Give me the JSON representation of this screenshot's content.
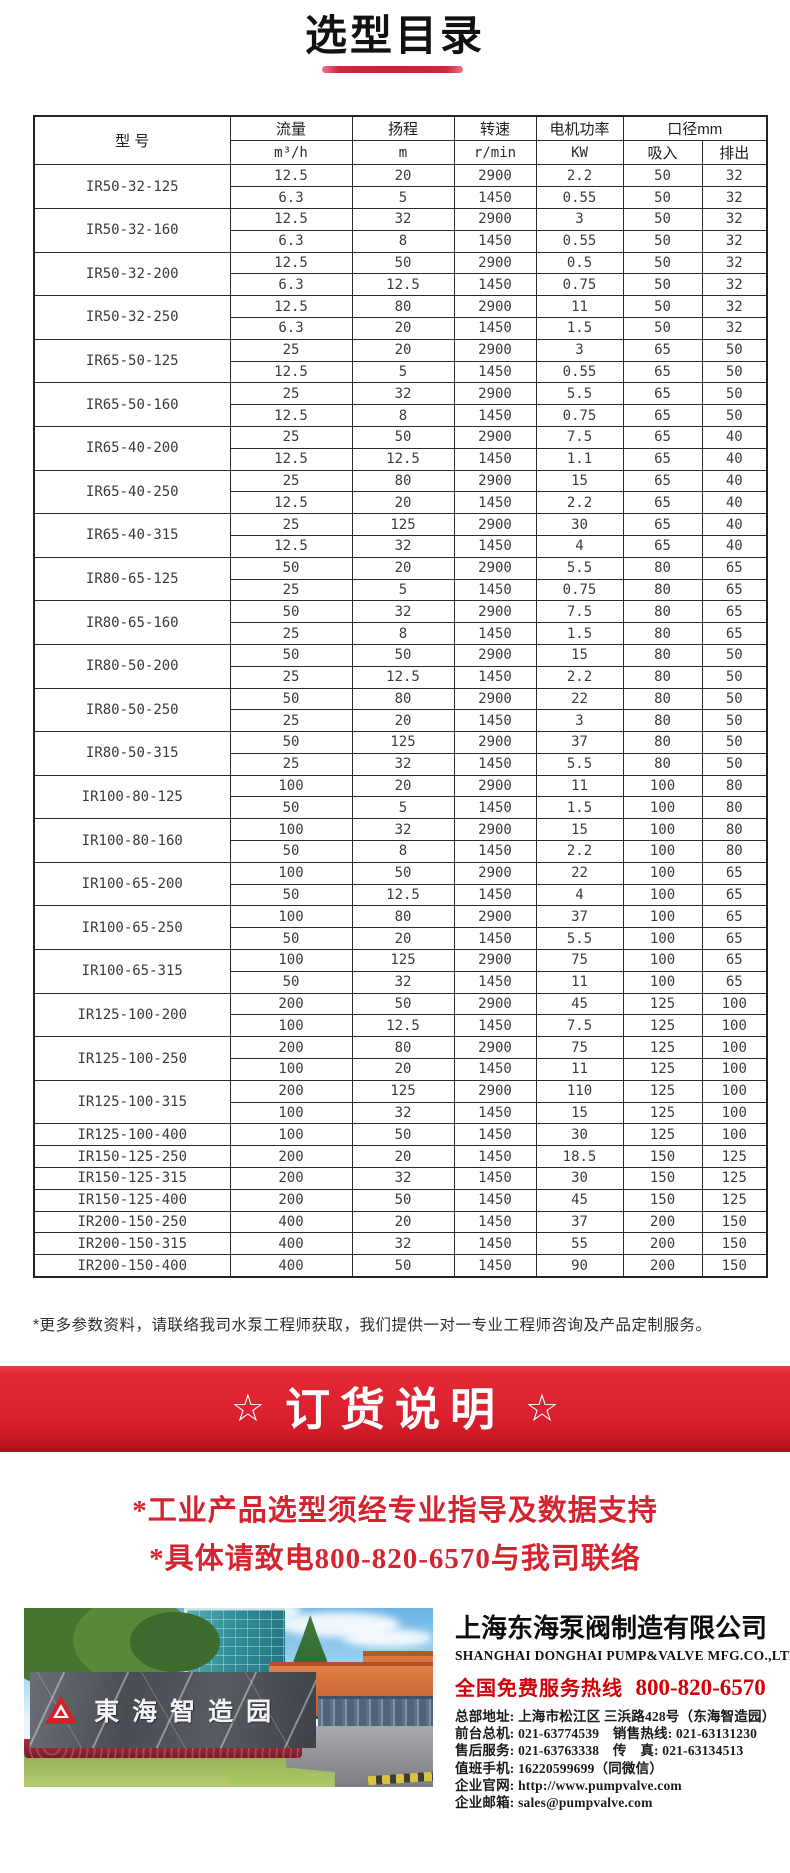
{
  "header": {
    "title": "选型目录"
  },
  "table": {
    "headers": {
      "model": "型 号",
      "flow": "流量",
      "flow_unit": "m³/h",
      "head": "扬程",
      "head_unit": "m",
      "speed": "转速",
      "speed_unit": "r/min",
      "power": "电机功率",
      "power_unit": "KW",
      "diameter": "口径mm",
      "suction": "吸入",
      "discharge": "排出"
    },
    "groups": [
      {
        "model": "IR50-32-125",
        "rows": [
          [
            "12.5",
            "20",
            "2900",
            "2.2",
            "50",
            "32"
          ],
          [
            "6.3",
            "5",
            "1450",
            "0.55",
            "50",
            "32"
          ]
        ]
      },
      {
        "model": "IR50-32-160",
        "rows": [
          [
            "12.5",
            "32",
            "2900",
            "3",
            "50",
            "32"
          ],
          [
            "6.3",
            "8",
            "1450",
            "0.55",
            "50",
            "32"
          ]
        ]
      },
      {
        "model": "IR50-32-200",
        "rows": [
          [
            "12.5",
            "50",
            "2900",
            "0.5",
            "50",
            "32"
          ],
          [
            "6.3",
            "12.5",
            "1450",
            "0.75",
            "50",
            "32"
          ]
        ]
      },
      {
        "model": "IR50-32-250",
        "rows": [
          [
            "12.5",
            "80",
            "2900",
            "11",
            "50",
            "32"
          ],
          [
            "6.3",
            "20",
            "1450",
            "1.5",
            "50",
            "32"
          ]
        ]
      },
      {
        "model": "IR65-50-125",
        "rows": [
          [
            "25",
            "20",
            "2900",
            "3",
            "65",
            "50"
          ],
          [
            "12.5",
            "5",
            "1450",
            "0.55",
            "65",
            "50"
          ]
        ]
      },
      {
        "model": "IR65-50-160",
        "rows": [
          [
            "25",
            "32",
            "2900",
            "5.5",
            "65",
            "50"
          ],
          [
            "12.5",
            "8",
            "1450",
            "0.75",
            "65",
            "50"
          ]
        ]
      },
      {
        "model": "IR65-40-200",
        "rows": [
          [
            "25",
            "50",
            "2900",
            "7.5",
            "65",
            "40"
          ],
          [
            "12.5",
            "12.5",
            "1450",
            "1.1",
            "65",
            "40"
          ]
        ]
      },
      {
        "model": "IR65-40-250",
        "rows": [
          [
            "25",
            "80",
            "2900",
            "15",
            "65",
            "40"
          ],
          [
            "12.5",
            "20",
            "1450",
            "2.2",
            "65",
            "40"
          ]
        ]
      },
      {
        "model": "IR65-40-315",
        "rows": [
          [
            "25",
            "125",
            "2900",
            "30",
            "65",
            "40"
          ],
          [
            "12.5",
            "32",
            "1450",
            "4",
            "65",
            "40"
          ]
        ]
      },
      {
        "model": "IR80-65-125",
        "rows": [
          [
            "50",
            "20",
            "2900",
            "5.5",
            "80",
            "65"
          ],
          [
            "25",
            "5",
            "1450",
            "0.75",
            "80",
            "65"
          ]
        ]
      },
      {
        "model": "IR80-65-160",
        "rows": [
          [
            "50",
            "32",
            "2900",
            "7.5",
            "80",
            "65"
          ],
          [
            "25",
            "8",
            "1450",
            "1.5",
            "80",
            "65"
          ]
        ]
      },
      {
        "model": "IR80-50-200",
        "rows": [
          [
            "50",
            "50",
            "2900",
            "15",
            "80",
            "50"
          ],
          [
            "25",
            "12.5",
            "1450",
            "2.2",
            "80",
            "50"
          ]
        ]
      },
      {
        "model": "IR80-50-250",
        "rows": [
          [
            "50",
            "80",
            "2900",
            "22",
            "80",
            "50"
          ],
          [
            "25",
            "20",
            "1450",
            "3",
            "80",
            "50"
          ]
        ]
      },
      {
        "model": "IR80-50-315",
        "rows": [
          [
            "50",
            "125",
            "2900",
            "37",
            "80",
            "50"
          ],
          [
            "25",
            "32",
            "1450",
            "5.5",
            "80",
            "50"
          ]
        ]
      },
      {
        "model": "IR100-80-125",
        "rows": [
          [
            "100",
            "20",
            "2900",
            "11",
            "100",
            "80"
          ],
          [
            "50",
            "5",
            "1450",
            "1.5",
            "100",
            "80"
          ]
        ]
      },
      {
        "model": "IR100-80-160",
        "rows": [
          [
            "100",
            "32",
            "2900",
            "15",
            "100",
            "80"
          ],
          [
            "50",
            "8",
            "1450",
            "2.2",
            "100",
            "80"
          ]
        ]
      },
      {
        "model": "IR100-65-200",
        "rows": [
          [
            "100",
            "50",
            "2900",
            "22",
            "100",
            "65"
          ],
          [
            "50",
            "12.5",
            "1450",
            "4",
            "100",
            "65"
          ]
        ]
      },
      {
        "model": "IR100-65-250",
        "rows": [
          [
            "100",
            "80",
            "2900",
            "37",
            "100",
            "65"
          ],
          [
            "50",
            "20",
            "1450",
            "5.5",
            "100",
            "65"
          ]
        ]
      },
      {
        "model": "IR100-65-315",
        "rows": [
          [
            "100",
            "125",
            "2900",
            "75",
            "100",
            "65"
          ],
          [
            "50",
            "32",
            "1450",
            "11",
            "100",
            "65"
          ]
        ]
      },
      {
        "model": "IR125-100-200",
        "rows": [
          [
            "200",
            "50",
            "2900",
            "45",
            "125",
            "100"
          ],
          [
            "100",
            "12.5",
            "1450",
            "7.5",
            "125",
            "100"
          ]
        ]
      },
      {
        "model": "IR125-100-250",
        "rows": [
          [
            "200",
            "80",
            "2900",
            "75",
            "125",
            "100"
          ],
          [
            "100",
            "20",
            "1450",
            "11",
            "125",
            "100"
          ]
        ]
      },
      {
        "model": "IR125-100-315",
        "rows": [
          [
            "200",
            "125",
            "2900",
            "110",
            "125",
            "100"
          ],
          [
            "100",
            "32",
            "1450",
            "15",
            "125",
            "100"
          ]
        ]
      },
      {
        "model": "IR125-100-400",
        "rows": [
          [
            "100",
            "50",
            "1450",
            "30",
            "125",
            "100"
          ]
        ]
      },
      {
        "model": "IR150-125-250",
        "rows": [
          [
            "200",
            "20",
            "1450",
            "18.5",
            "150",
            "125"
          ]
        ]
      },
      {
        "model": "IR150-125-315",
        "rows": [
          [
            "200",
            "32",
            "1450",
            "30",
            "150",
            "125"
          ]
        ]
      },
      {
        "model": "IR150-125-400",
        "rows": [
          [
            "200",
            "50",
            "1450",
            "45",
            "150",
            "125"
          ]
        ]
      },
      {
        "model": "IR200-150-250",
        "rows": [
          [
            "400",
            "20",
            "1450",
            "37",
            "200",
            "150"
          ]
        ]
      },
      {
        "model": "IR200-150-315",
        "rows": [
          [
            "400",
            "32",
            "1450",
            "55",
            "200",
            "150"
          ]
        ]
      },
      {
        "model": "IR200-150-400",
        "rows": [
          [
            "400",
            "50",
            "1450",
            "90",
            "200",
            "150"
          ]
        ]
      }
    ]
  },
  "footnote": "*更多参数资料，请联络我司水泵工程师获取，我们提供一对一专业工程师咨询及产品定制服务。",
  "banner": {
    "star": "☆",
    "title": "订货说明"
  },
  "notice": {
    "lines": [
      "*工业产品选型须经专业指导及数据支持",
      "*具体请致电800-820-6570与我司联络"
    ]
  },
  "photo": {
    "sign_text": "東海智造园"
  },
  "company": {
    "name_cn": "上海东海泵阀制造有限公司",
    "name_en": "SHANGHAI DONGHAI PUMP&VALVE MFG.CO.,LTD.",
    "hotline_label": "全国免费服务热线",
    "hotline_number": "800-820-6570",
    "contact_lines": [
      "总部地址: 上海市松江区 三浜路428号（东海智造园）",
      "前台总机: 021-63774539　销售热线: 021-63131230",
      "售后服务: 021-63763338　传　真: 021-63134513",
      "值班手机: 16220599699（同微信）",
      "企业官网: http://www.pumpvalve.com",
      "企业邮箱: sales@pumpvalve.com"
    ],
    "accent_color": "#d50007",
    "banner_color": "#dd2130"
  }
}
